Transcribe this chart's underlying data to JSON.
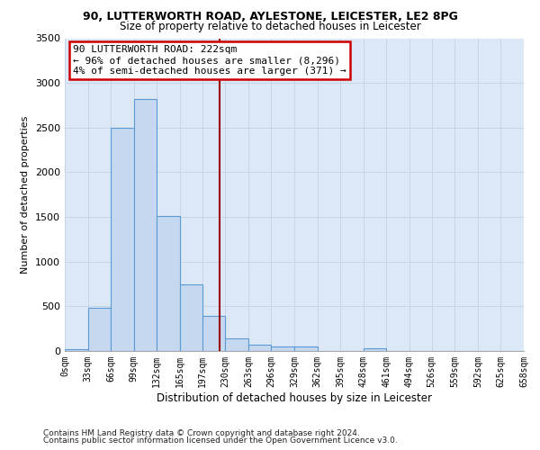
{
  "title_line1": "90, LUTTERWORTH ROAD, AYLESTONE, LEICESTER, LE2 8PG",
  "title_line2": "Size of property relative to detached houses in Leicester",
  "xlabel": "Distribution of detached houses by size in Leicester",
  "ylabel": "Number of detached properties",
  "property_size": 222,
  "bin_edges": [
    0,
    33,
    66,
    99,
    132,
    165,
    197,
    230,
    263,
    296,
    329,
    362,
    395,
    428,
    461,
    494,
    526,
    559,
    592,
    625,
    658
  ],
  "bin_labels": [
    "0sqm",
    "33sqm",
    "66sqm",
    "99sqm",
    "132sqm",
    "165sqm",
    "197sqm",
    "230sqm",
    "263sqm",
    "296sqm",
    "329sqm",
    "362sqm",
    "395sqm",
    "428sqm",
    "461sqm",
    "494sqm",
    "526sqm",
    "559sqm",
    "592sqm",
    "625sqm",
    "658sqm"
  ],
  "bar_heights": [
    25,
    480,
    2500,
    2820,
    1510,
    750,
    390,
    140,
    75,
    55,
    55,
    0,
    0,
    30,
    0,
    0,
    0,
    0,
    0,
    0
  ],
  "bar_color": "#c5d8f0",
  "bar_edge_color": "#5b9bd5",
  "vline_x": 222,
  "vline_color": "#990000",
  "annotation_text": "90 LUTTERWORTH ROAD: 222sqm\n← 96% of detached houses are smaller (8,296)\n4% of semi-detached houses are larger (371) →",
  "annotation_box_color": "#ffffff",
  "annotation_box_edge": "#cc0000",
  "ylim": [
    0,
    3500
  ],
  "yticks": [
    0,
    500,
    1000,
    1500,
    2000,
    2500,
    3000,
    3500
  ],
  "grid_color": "#c8d4e8",
  "bg_color": "#dce8f5",
  "footnote1": "Contains HM Land Registry data © Crown copyright and database right 2024.",
  "footnote2": "Contains public sector information licensed under the Open Government Licence v3.0."
}
